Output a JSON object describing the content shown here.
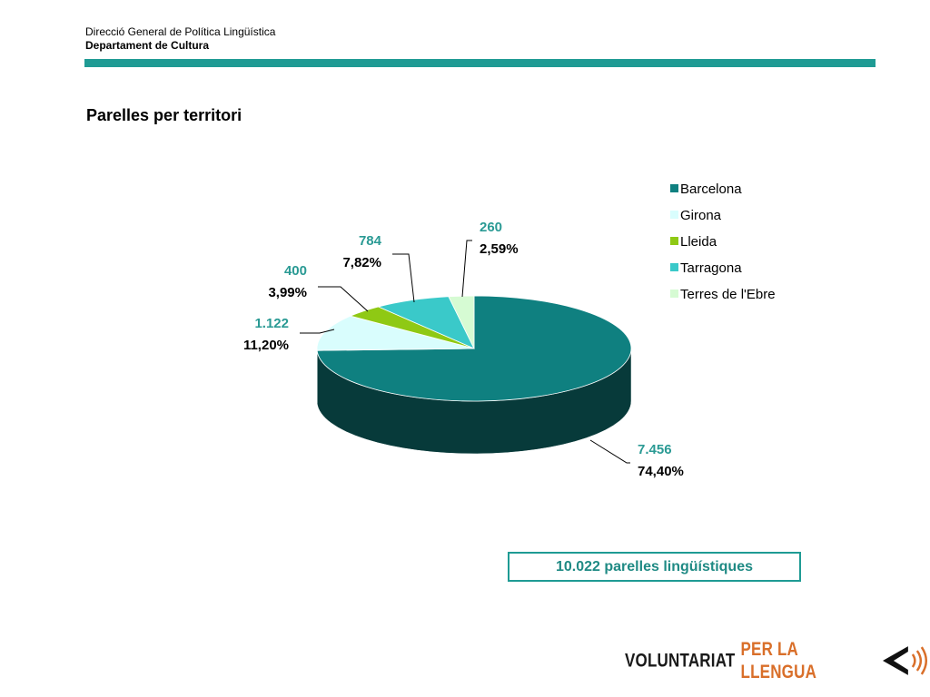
{
  "header": {
    "org_line1": "Direcció General de Política Lingüística",
    "org_line2": "Departament de Cultura"
  },
  "slide_title": "Parelles per territori",
  "total_label": "10.022 parelles lingüístiques",
  "footer": {
    "logo_word1": "VOLUNTARIAT",
    "logo_word2": "PER LA LLENGUA",
    "logo_icon": "speaker-sound-icon"
  },
  "colors": {
    "accent": "#1f9b94",
    "value_text": "#2a9a94",
    "logo_orange": "#d96f2a"
  },
  "chart_data": {
    "type": "pie",
    "title": "",
    "legend_position": "right",
    "slices": [
      {
        "name": "Barcelona",
        "value": 7456,
        "value_label": "7.456",
        "percent_label": "74,40%",
        "color": "#0f8080"
      },
      {
        "name": "Girona",
        "value": 1122,
        "value_label": "1.122",
        "percent_label": "11,20%",
        "color": "#d9fdfd"
      },
      {
        "name": "Lleida",
        "value": 400,
        "value_label": "400",
        "percent_label": "3,99%",
        "color": "#8fc914"
      },
      {
        "name": "Tarragona",
        "value": 784,
        "value_label": "784",
        "percent_label": "7,82%",
        "color": "#3ac9c9"
      },
      {
        "name": "Terres de l'Ebre",
        "value": 260,
        "value_label": "260",
        "percent_label": "2,59%",
        "color": "#d6fbd3"
      }
    ]
  }
}
